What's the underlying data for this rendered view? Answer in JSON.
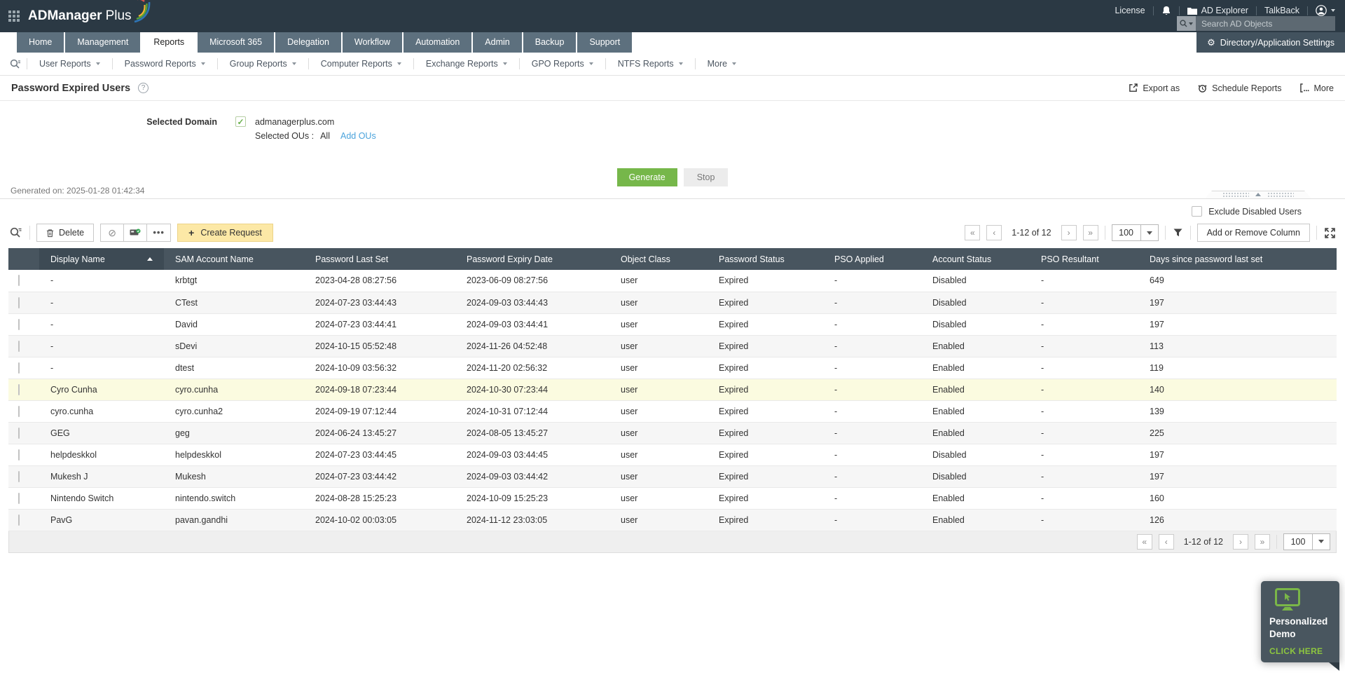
{
  "topbar": {
    "logo_bold": "ADManager",
    "logo_light": "Plus",
    "license": "License",
    "ad_explorer": "AD Explorer",
    "talkback": "TalkBack",
    "search_placeholder": "Search AD Objects",
    "settings_button": "Directory/Application Settings"
  },
  "tabs": {
    "items": [
      {
        "label": "Home",
        "active": false
      },
      {
        "label": "Management",
        "active": false
      },
      {
        "label": "Reports",
        "active": true
      },
      {
        "label": "Microsoft 365",
        "active": false
      },
      {
        "label": "Delegation",
        "active": false
      },
      {
        "label": "Workflow",
        "active": false
      },
      {
        "label": "Automation",
        "active": false
      },
      {
        "label": "Admin",
        "active": false
      },
      {
        "label": "Backup",
        "active": false
      },
      {
        "label": "Support",
        "active": false
      }
    ]
  },
  "report_nav": {
    "items": [
      "User Reports",
      "Password Reports",
      "Group Reports",
      "Computer Reports",
      "Exchange Reports",
      "GPO Reports",
      "NTFS Reports",
      "More"
    ]
  },
  "page": {
    "title": "Password Expired Users",
    "actions": {
      "export_as": "Export as",
      "schedule": "Schedule Reports",
      "more": "More"
    }
  },
  "form": {
    "selected_domain_label": "Selected Domain",
    "domain": "admanagerplus.com",
    "selected_ous_label": "Selected OUs :",
    "selected_ous_value": "All",
    "add_ous_link": "Add OUs",
    "generate_label": "Generate",
    "stop_label": "Stop",
    "generated_on": "Generated on: 2025-01-28 01:42:34",
    "exclude_disabled_label": "Exclude Disabled Users"
  },
  "toolbar": {
    "delete_label": "Delete",
    "create_request_label": "Create Request",
    "plus": "+",
    "pagination": "1-12 of 12",
    "page_size": "100",
    "add_remove_column": "Add or Remove Column",
    "first": "«",
    "prev": "‹",
    "next": "›",
    "last": "»"
  },
  "table": {
    "columns": [
      {
        "key": "display_name",
        "label": "Display Name",
        "sorted": true
      },
      {
        "key": "sam_account_name",
        "label": "SAM Account Name"
      },
      {
        "key": "password_last_set",
        "label": "Password Last Set"
      },
      {
        "key": "password_expiry_date",
        "label": "Password Expiry Date"
      },
      {
        "key": "object_class",
        "label": "Object Class"
      },
      {
        "key": "password_status",
        "label": "Password Status"
      },
      {
        "key": "pso_applied",
        "label": "PSO Applied"
      },
      {
        "key": "account_status",
        "label": "Account Status"
      },
      {
        "key": "pso_resultant",
        "label": "PSO Resultant"
      },
      {
        "key": "days_since_password_last_set",
        "label": "Days since password last set"
      }
    ],
    "rows": [
      {
        "cells": [
          "-",
          "krbtgt",
          "2023-04-28 08:27:56",
          "2023-06-09 08:27:56",
          "user",
          "Expired",
          "-",
          "Disabled",
          "-",
          "649"
        ]
      },
      {
        "cells": [
          "-",
          "CTest",
          "2024-07-23 03:44:43",
          "2024-09-03 03:44:43",
          "user",
          "Expired",
          "-",
          "Disabled",
          "-",
          "197"
        ]
      },
      {
        "cells": [
          "-",
          "David",
          "2024-07-23 03:44:41",
          "2024-09-03 03:44:41",
          "user",
          "Expired",
          "-",
          "Disabled",
          "-",
          "197"
        ]
      },
      {
        "cells": [
          "-",
          "sDevi",
          "2024-10-15 05:52:48",
          "2024-11-26 04:52:48",
          "user",
          "Expired",
          "-",
          "Enabled",
          "-",
          "113"
        ]
      },
      {
        "cells": [
          "-",
          "dtest",
          "2024-10-09 03:56:32",
          "2024-11-20 02:56:32",
          "user",
          "Expired",
          "-",
          "Enabled",
          "-",
          "119"
        ]
      },
      {
        "cells": [
          "Cyro Cunha",
          "cyro.cunha",
          "2024-09-18 07:23:44",
          "2024-10-30 07:23:44",
          "user",
          "Expired",
          "-",
          "Enabled",
          "-",
          "140"
        ],
        "highlighted": true
      },
      {
        "cells": [
          "cyro.cunha",
          "cyro.cunha2",
          "2024-09-19 07:12:44",
          "2024-10-31 07:12:44",
          "user",
          "Expired",
          "-",
          "Enabled",
          "-",
          "139"
        ]
      },
      {
        "cells": [
          "GEG",
          "geg",
          "2024-06-24 13:45:27",
          "2024-08-05 13:45:27",
          "user",
          "Expired",
          "-",
          "Enabled",
          "-",
          "225"
        ]
      },
      {
        "cells": [
          "helpdeskkol",
          "helpdeskkol",
          "2024-07-23 03:44:45",
          "2024-09-03 03:44:45",
          "user",
          "Expired",
          "-",
          "Disabled",
          "-",
          "197"
        ]
      },
      {
        "cells": [
          "Mukesh J",
          "Mukesh",
          "2024-07-23 03:44:42",
          "2024-09-03 03:44:42",
          "user",
          "Expired",
          "-",
          "Disabled",
          "-",
          "197"
        ]
      },
      {
        "cells": [
          "Nintendo Switch",
          "nintendo.switch",
          "2024-08-28 15:25:23",
          "2024-10-09 15:25:23",
          "user",
          "Expired",
          "-",
          "Enabled",
          "-",
          "160"
        ]
      },
      {
        "cells": [
          "PavG",
          "pavan.gandhi",
          "2024-10-02 00:03:05",
          "2024-11-12 23:03:05",
          "user",
          "Expired",
          "-",
          "Enabled",
          "-",
          "126"
        ]
      }
    ]
  },
  "footer": {
    "pagination": "1-12 of 12",
    "page_size": "100",
    "first": "«",
    "prev": "‹",
    "next": "›",
    "last": "»"
  },
  "demo_badge": {
    "title_html": "Personalized Demo",
    "line1": "Personalized",
    "line2": "Demo",
    "cta": "CLICK HERE"
  }
}
